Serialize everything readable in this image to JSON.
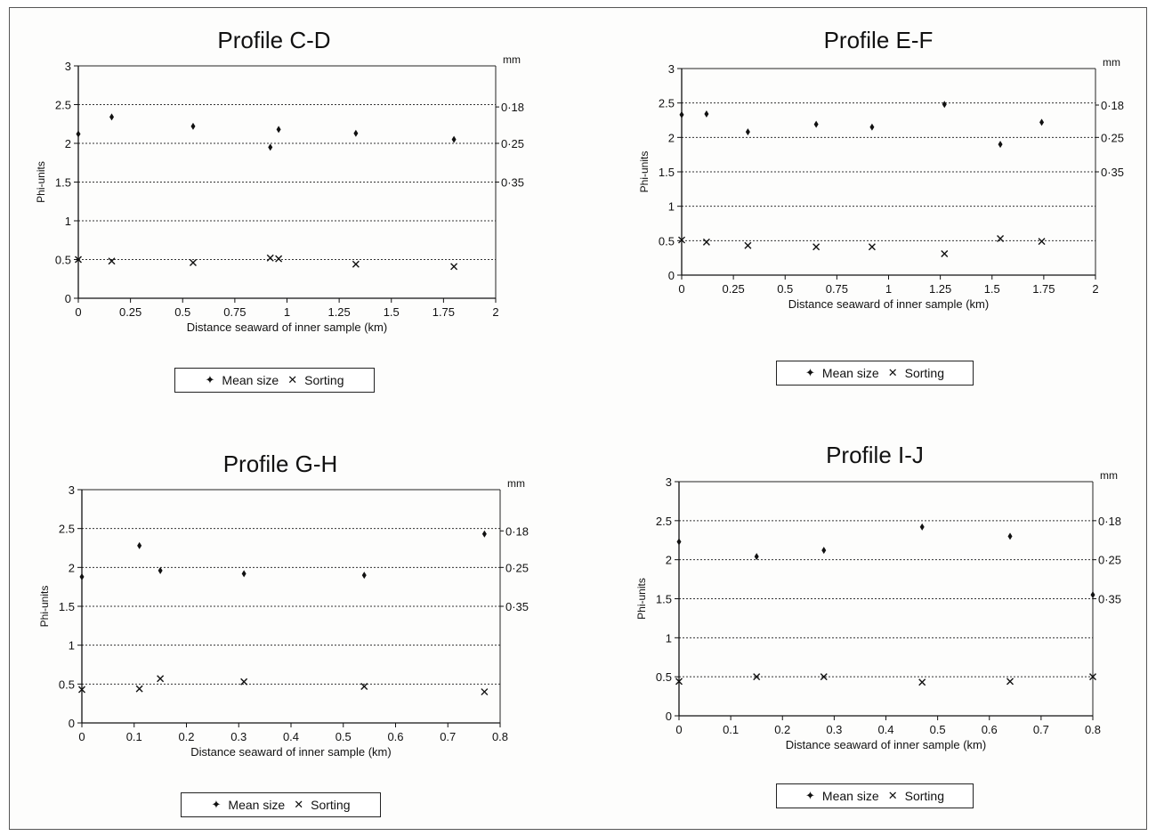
{
  "chart_data": [
    {
      "type": "scatter",
      "title": "Profile C-D",
      "xlabel": "Distance seaward of inner sample (km)",
      "ylabel": "Phi-units",
      "right_axis_unit": "mm",
      "right_ticks": [
        {
          "phi": 2.47,
          "label": "0·18"
        },
        {
          "phi": 2.0,
          "label": "0·25"
        },
        {
          "phi": 1.5,
          "label": "0·35"
        }
      ],
      "xlim": [
        0,
        2
      ],
      "ylim": [
        0,
        3
      ],
      "x_ticks": [
        "0",
        "0.25",
        "0.5",
        "0.75",
        "1",
        "1.25",
        "1.5",
        "1.75",
        "2"
      ],
      "y_ticks": [
        "0",
        "0.5",
        "1",
        "1.5",
        "2",
        "2.5",
        "3"
      ],
      "gridlines_y": [
        0.5,
        1,
        1.5,
        2,
        2.5
      ],
      "series": [
        {
          "name": "Mean size",
          "symbol": "dot",
          "points": [
            [
              0,
              2.12
            ],
            [
              0.16,
              2.34
            ],
            [
              0.55,
              2.22
            ],
            [
              0.92,
              1.95
            ],
            [
              0.96,
              2.18
            ],
            [
              1.33,
              2.13
            ],
            [
              1.8,
              2.05
            ]
          ]
        },
        {
          "name": "Sorting",
          "symbol": "x",
          "points": [
            [
              0,
              0.5
            ],
            [
              0.16,
              0.48
            ],
            [
              0.55,
              0.46
            ],
            [
              0.92,
              0.52
            ],
            [
              0.96,
              0.51
            ],
            [
              1.33,
              0.44
            ],
            [
              1.8,
              0.41
            ]
          ]
        }
      ]
    },
    {
      "type": "scatter",
      "title": "Profile E-F",
      "xlabel": "Distance seaward of inner sample (km)",
      "ylabel": "Phi-units",
      "right_axis_unit": "mm",
      "right_ticks": [
        {
          "phi": 2.47,
          "label": "0·18"
        },
        {
          "phi": 2.0,
          "label": "0·25"
        },
        {
          "phi": 1.5,
          "label": "0·35"
        }
      ],
      "xlim": [
        0,
        2
      ],
      "ylim": [
        0,
        3
      ],
      "x_ticks": [
        "0",
        "0.25",
        "0.5",
        "0.75",
        "1",
        "1.25",
        "1.5",
        "1.75",
        "2"
      ],
      "y_ticks": [
        "0",
        "0.5",
        "1",
        "1.5",
        "2",
        "2.5",
        "3"
      ],
      "gridlines_y": [
        0.5,
        1,
        1.5,
        2,
        2.5
      ],
      "series": [
        {
          "name": "Mean size",
          "symbol": "dot",
          "points": [
            [
              0,
              2.33
            ],
            [
              0.12,
              2.34
            ],
            [
              0.32,
              2.08
            ],
            [
              0.65,
              2.19
            ],
            [
              0.92,
              2.15
            ],
            [
              1.27,
              2.48
            ],
            [
              1.54,
              1.9
            ],
            [
              1.74,
              2.22
            ]
          ]
        },
        {
          "name": "Sorting",
          "symbol": "x",
          "points": [
            [
              0,
              0.51
            ],
            [
              0.12,
              0.48
            ],
            [
              0.32,
              0.43
            ],
            [
              0.65,
              0.41
            ],
            [
              0.92,
              0.41
            ],
            [
              1.27,
              0.31
            ],
            [
              1.54,
              0.53
            ],
            [
              1.74,
              0.49
            ]
          ]
        }
      ]
    },
    {
      "type": "scatter",
      "title": "Profile G-H",
      "xlabel": "Distance seaward of inner sample (km)",
      "ylabel": "Phi-units",
      "right_axis_unit": "mm",
      "right_ticks": [
        {
          "phi": 2.47,
          "label": "0·18"
        },
        {
          "phi": 2.0,
          "label": "0·25"
        },
        {
          "phi": 1.5,
          "label": "0·35"
        }
      ],
      "xlim": [
        0,
        0.8
      ],
      "ylim": [
        0,
        3
      ],
      "x_ticks": [
        "0",
        "0.1",
        "0.2",
        "0.3",
        "0.4",
        "0.5",
        "0.6",
        "0.7",
        "0.8"
      ],
      "y_ticks": [
        "0",
        "0.5",
        "1",
        "1.5",
        "2",
        "2.5",
        "3"
      ],
      "gridlines_y": [
        0.5,
        1,
        1.5,
        2,
        2.5
      ],
      "series": [
        {
          "name": "Mean size",
          "symbol": "dot",
          "points": [
            [
              0,
              1.88
            ],
            [
              0.11,
              2.28
            ],
            [
              0.15,
              1.96
            ],
            [
              0.31,
              1.92
            ],
            [
              0.54,
              1.9
            ],
            [
              0.77,
              2.43
            ]
          ]
        },
        {
          "name": "Sorting",
          "symbol": "x",
          "points": [
            [
              0,
              0.43
            ],
            [
              0.11,
              0.44
            ],
            [
              0.15,
              0.57
            ],
            [
              0.31,
              0.53
            ],
            [
              0.54,
              0.47
            ],
            [
              0.77,
              0.4
            ]
          ]
        }
      ]
    },
    {
      "type": "scatter",
      "title": "Profile I-J",
      "xlabel": "Distance seaward of inner sample (km)",
      "ylabel": "Phi-units",
      "right_axis_unit": "mm",
      "right_ticks": [
        {
          "phi": 2.5,
          "label": "0·18"
        },
        {
          "phi": 2.0,
          "label": "0·25"
        },
        {
          "phi": 1.5,
          "label": "0·35"
        }
      ],
      "xlim": [
        0,
        0.8
      ],
      "ylim": [
        0,
        3
      ],
      "x_ticks": [
        "0",
        "0.1",
        "0.2",
        "0.3",
        "0.4",
        "0.5",
        "0.6",
        "0.7",
        "0.8"
      ],
      "y_ticks": [
        "0",
        "0.5",
        "1",
        "1.5",
        "2",
        "2.5",
        "3"
      ],
      "gridlines_y": [
        0.5,
        1,
        1.5,
        2,
        2.5
      ],
      "series": [
        {
          "name": "Mean size",
          "symbol": "dot",
          "points": [
            [
              0,
              2.23
            ],
            [
              0.15,
              2.04
            ],
            [
              0.28,
              2.12
            ],
            [
              0.47,
              2.42
            ],
            [
              0.64,
              2.3
            ],
            [
              0.8,
              1.55
            ]
          ]
        },
        {
          "name": "Sorting",
          "symbol": "x",
          "points": [
            [
              0,
              0.44
            ],
            [
              0.15,
              0.5
            ],
            [
              0.28,
              0.5
            ],
            [
              0.47,
              0.43
            ],
            [
              0.64,
              0.44
            ],
            [
              0.8,
              0.5
            ]
          ]
        }
      ]
    }
  ],
  "legend": {
    "mean_label": "Mean size",
    "sorting_label": "Sorting",
    "mean_symbol": "✦",
    "sorting_symbol": "✕"
  }
}
